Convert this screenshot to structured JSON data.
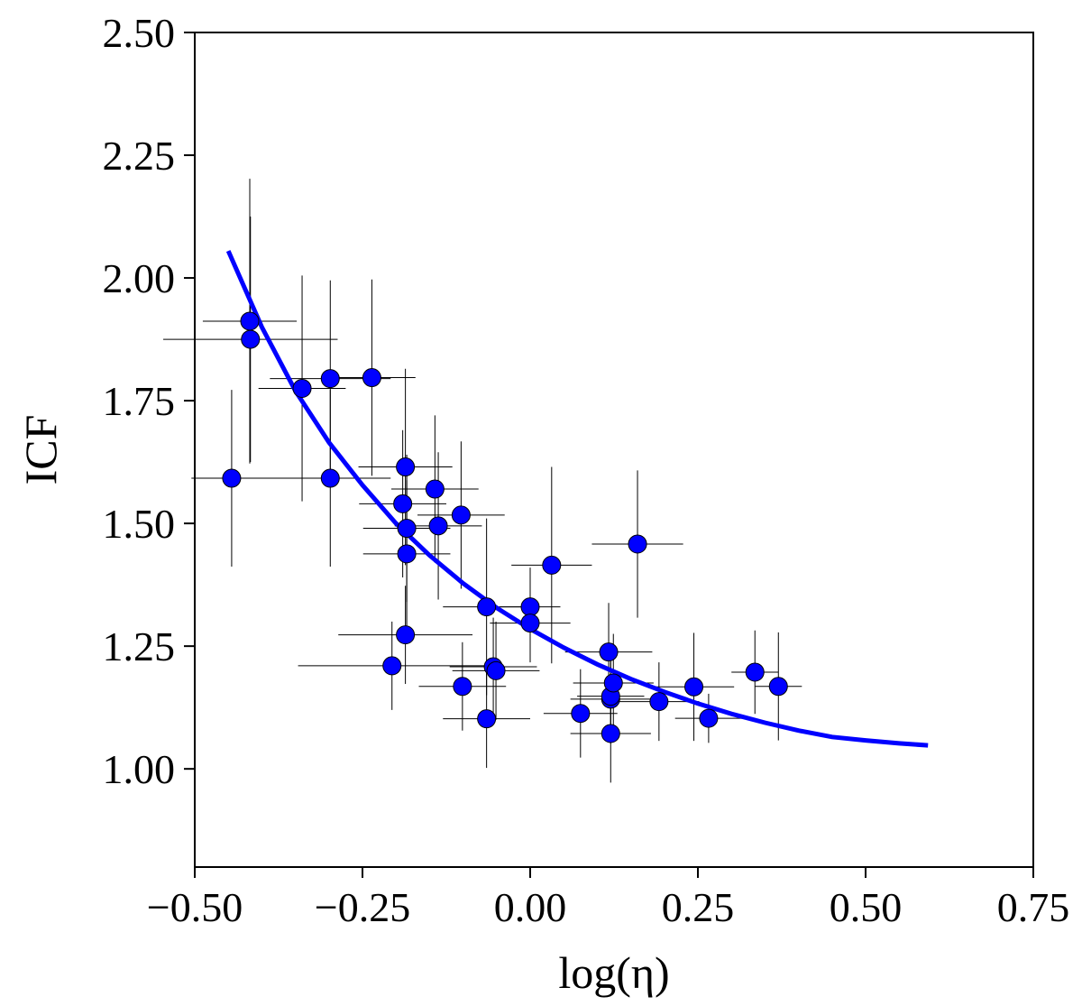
{
  "chart_data": {
    "type": "scatter",
    "title": "",
    "xlabel": "log(η)",
    "ylabel": "ICF",
    "xlim": [
      -0.5,
      0.75
    ],
    "ylim": [
      0.8,
      2.5
    ],
    "x_ticks": [
      -0.5,
      -0.25,
      0.0,
      0.25,
      0.5,
      0.75
    ],
    "x_tick_labels": [
      "−0.50",
      "−0.25",
      "0.00",
      "0.25",
      "0.50",
      "0.75"
    ],
    "y_ticks": [
      1.0,
      1.25,
      1.5,
      1.75,
      2.0,
      2.25,
      2.5
    ],
    "y_tick_labels": [
      "1.00",
      "1.25",
      "1.50",
      "1.75",
      "2.00",
      "2.25",
      "2.50"
    ],
    "grid": false,
    "legend": "none",
    "colors": {
      "points": "#0000ff",
      "fit_line": "#0000ff",
      "error_bars": "#000000"
    },
    "series": [
      {
        "type": "scatter",
        "points": [
          {
            "x": -0.445,
            "y": 1.592,
            "xerr": 0.06,
            "yerr": 0.18
          },
          {
            "x": -0.418,
            "y": 1.912,
            "xerr": 0.07,
            "yerr": 0.29
          },
          {
            "x": -0.417,
            "y": 1.875,
            "xerr": 0.13,
            "yerr": 0.25
          },
          {
            "x": -0.34,
            "y": 1.775,
            "xerr": 0.065,
            "yerr": 0.23
          },
          {
            "x": -0.298,
            "y": 1.795,
            "xerr": 0.09,
            "yerr": 0.2
          },
          {
            "x": -0.298,
            "y": 1.592,
            "xerr": 0.09,
            "yerr": 0.18
          },
          {
            "x": -0.236,
            "y": 1.797,
            "xerr": 0.065,
            "yerr": 0.2
          },
          {
            "x": -0.206,
            "y": 1.21,
            "xerr": 0.14,
            "yerr": 0.09
          },
          {
            "x": -0.19,
            "y": 1.54,
            "xerr": 0.065,
            "yerr": 0.15
          },
          {
            "x": -0.186,
            "y": 1.615,
            "xerr": 0.07,
            "yerr": 0.2
          },
          {
            "x": -0.184,
            "y": 1.49,
            "xerr": 0.065,
            "yerr": 0.15
          },
          {
            "x": -0.184,
            "y": 1.438,
            "xerr": 0.065,
            "yerr": 0.15
          },
          {
            "x": -0.186,
            "y": 1.273,
            "xerr": 0.1,
            "yerr": 0.1
          },
          {
            "x": -0.142,
            "y": 1.57,
            "xerr": 0.065,
            "yerr": 0.15
          },
          {
            "x": -0.137,
            "y": 1.495,
            "xerr": 0.065,
            "yerr": 0.15
          },
          {
            "x": -0.103,
            "y": 1.517,
            "xerr": 0.065,
            "yerr": 0.15
          },
          {
            "x": -0.101,
            "y": 1.168,
            "xerr": 0.065,
            "yerr": 0.09
          },
          {
            "x": -0.065,
            "y": 1.33,
            "xerr": 0.065,
            "yerr": 0.18
          },
          {
            "x": -0.065,
            "y": 1.102,
            "xerr": 0.065,
            "yerr": 0.1
          },
          {
            "x": -0.055,
            "y": 1.208,
            "xerr": 0.065,
            "yerr": 0.1
          },
          {
            "x": -0.051,
            "y": 1.2,
            "xerr": 0.065,
            "yerr": 0.1
          },
          {
            "x": 0.0,
            "y": 1.33,
            "xerr": 0.045,
            "yerr": 0.08
          },
          {
            "x": 0.0,
            "y": 1.297,
            "xerr": 0.06,
            "yerr": 0.08
          },
          {
            "x": 0.032,
            "y": 1.415,
            "xerr": 0.06,
            "yerr": 0.2
          },
          {
            "x": 0.075,
            "y": 1.113,
            "xerr": 0.055,
            "yerr": 0.09
          },
          {
            "x": 0.117,
            "y": 1.238,
            "xerr": 0.065,
            "yerr": 0.1
          },
          {
            "x": 0.12,
            "y": 1.072,
            "xerr": 0.06,
            "yerr": 0.1
          },
          {
            "x": 0.12,
            "y": 1.142,
            "xerr": 0.06,
            "yerr": 0.09
          },
          {
            "x": 0.12,
            "y": 1.148,
            "xerr": 0.05,
            "yerr": 0.07
          },
          {
            "x": 0.124,
            "y": 1.175,
            "xerr": 0.06,
            "yerr": 0.1
          },
          {
            "x": 0.16,
            "y": 1.458,
            "xerr": 0.068,
            "yerr": 0.15
          },
          {
            "x": 0.192,
            "y": 1.137,
            "xerr": 0.06,
            "yerr": 0.08
          },
          {
            "x": 0.244,
            "y": 1.167,
            "xerr": 0.06,
            "yerr": 0.11
          },
          {
            "x": 0.266,
            "y": 1.103,
            "xerr": 0.05,
            "yerr": 0.05
          },
          {
            "x": 0.335,
            "y": 1.197,
            "xerr": 0.035,
            "yerr": 0.085
          },
          {
            "x": 0.37,
            "y": 1.168,
            "xerr": 0.035,
            "yerr": 0.11
          }
        ]
      },
      {
        "type": "line",
        "points": [
          {
            "x": -0.45,
            "y": 2.055
          },
          {
            "x": -0.4,
            "y": 1.9
          },
          {
            "x": -0.35,
            "y": 1.77
          },
          {
            "x": -0.3,
            "y": 1.665
          },
          {
            "x": -0.25,
            "y": 1.578
          },
          {
            "x": -0.2,
            "y": 1.5
          },
          {
            "x": -0.15,
            "y": 1.435
          },
          {
            "x": -0.1,
            "y": 1.378
          },
          {
            "x": -0.05,
            "y": 1.328
          },
          {
            "x": 0.0,
            "y": 1.285
          },
          {
            "x": 0.05,
            "y": 1.247
          },
          {
            "x": 0.1,
            "y": 1.213
          },
          {
            "x": 0.15,
            "y": 1.183
          },
          {
            "x": 0.2,
            "y": 1.157
          },
          {
            "x": 0.25,
            "y": 1.133
          },
          {
            "x": 0.3,
            "y": 1.112
          },
          {
            "x": 0.35,
            "y": 1.094
          },
          {
            "x": 0.4,
            "y": 1.078
          },
          {
            "x": 0.45,
            "y": 1.065
          },
          {
            "x": 0.5,
            "y": 1.058
          },
          {
            "x": 0.55,
            "y": 1.052
          },
          {
            "x": 0.593,
            "y": 1.048
          }
        ]
      }
    ]
  }
}
